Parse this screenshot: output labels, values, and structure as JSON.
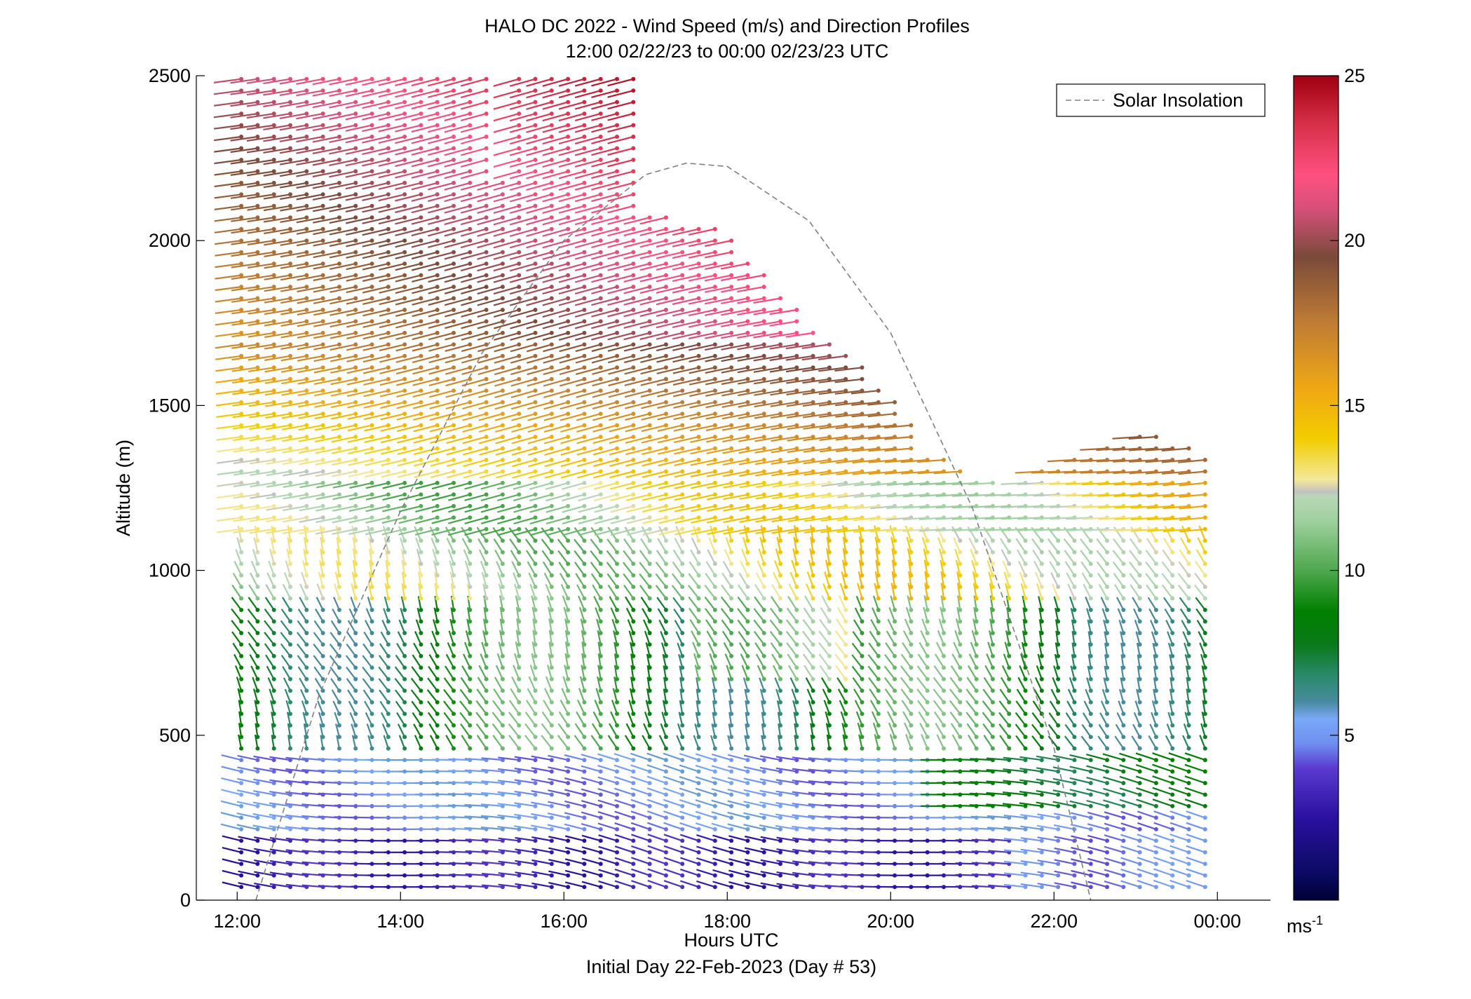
{
  "chart_data": {
    "type": "wind-barb profile (scatter)",
    "title": "HALO DC 2022 - Wind Speed (m/s) and Direction Profiles",
    "subtitle": "12:00 02/22/23 to 00:00 02/23/23  UTC",
    "xlabel": "Hours UTC",
    "xlabel2": "Initial Day 22-Feb-2023 (Day # 53)",
    "ylabel": "Altitude (m)",
    "x_ticks": [
      "12:00",
      "14:00",
      "16:00",
      "18:00",
      "20:00",
      "22:00",
      "00:00"
    ],
    "y_ticks": [
      "0",
      "500",
      "1000",
      "1500",
      "2000",
      "2500"
    ],
    "xlim_hours": [
      11.5,
      24.65
    ],
    "ylim": [
      0,
      2500
    ],
    "legend": {
      "placement": "top-right",
      "entries": [
        {
          "label": "Solar Insolation",
          "style": "dashed",
          "color": "#808080"
        }
      ]
    },
    "colorbar": {
      "ticks": [
        "5",
        "10",
        "15",
        "20",
        "25"
      ],
      "min": 0,
      "max": 25,
      "unit_label": "ms",
      "unit_exponent": "-1"
    },
    "solar_insolation": {
      "x_hours": [
        12.23,
        13.0,
        14.0,
        15.0,
        16.0,
        17.0,
        17.5,
        18.0,
        19.0,
        20.0,
        21.0,
        22.0,
        22.45
      ],
      "y_m": [
        0,
        620,
        1180,
        1660,
        2000,
        2200,
        2235,
        2225,
        2060,
        1720,
        1190,
        460,
        0
      ]
    }
  }
}
